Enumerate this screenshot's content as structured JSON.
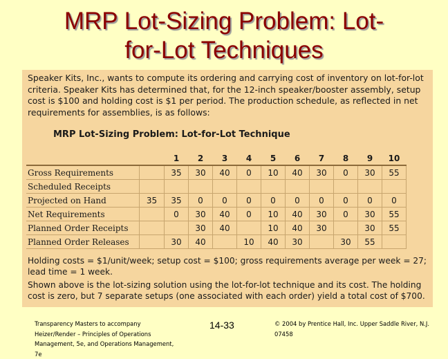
{
  "slide": {
    "title_line1": "MRP Lot-Sizing Problem: Lot-",
    "title_line2": "for-Lot Techniques"
  },
  "panel": {
    "intro": "Speaker Kits, Inc., wants to compute its ordering and carrying cost of inventory on lot-for-lot criteria. Speaker Kits has determined that, for the 12-inch speaker/booster assembly, setup cost is $100 and holding cost is $1 per period. The production schedule, as reflected in net requirements for assemblies, is as follows:",
    "table_title": "MRP Lot-Sizing Problem: Lot-for-Lot Technique",
    "periods": [
      "1",
      "2",
      "3",
      "4",
      "5",
      "6",
      "7",
      "8",
      "9",
      "10"
    ],
    "rows": [
      {
        "label": "Gross Requirements",
        "on_hand": "",
        "values": [
          "35",
          "30",
          "40",
          "0",
          "10",
          "40",
          "30",
          "0",
          "30",
          "55"
        ]
      },
      {
        "label": "Scheduled Receipts",
        "on_hand": "",
        "values": [
          "",
          "",
          "",
          "",
          "",
          "",
          "",
          "",
          "",
          ""
        ]
      },
      {
        "label": "Projected on Hand",
        "on_hand": "35",
        "values": [
          "35",
          "0",
          "0",
          "0",
          "0",
          "0",
          "0",
          "0",
          "0",
          "0"
        ]
      },
      {
        "label": "Net Requirements",
        "on_hand": "",
        "values": [
          "0",
          "30",
          "40",
          "0",
          "10",
          "40",
          "30",
          "0",
          "30",
          "55"
        ]
      },
      {
        "label": "Planned Order Receipts",
        "on_hand": "",
        "values": [
          "",
          "30",
          "40",
          "",
          "10",
          "40",
          "30",
          "",
          "30",
          "55"
        ]
      },
      {
        "label": "Planned Order Releases",
        "on_hand": "",
        "values": [
          "30",
          "40",
          "",
          "10",
          "40",
          "30",
          "",
          "30",
          "55",
          ""
        ]
      }
    ],
    "costs_note": "Holding costs = $1/unit/week; setup cost = $100; gross requirements average per week = 27; lead time = 1 week.",
    "summary": "Shown above is the lot-sizing solution using the lot-for-lot technique and its cost. The holding cost is zero, but 7 separate setups (one associated with each order) yield a total cost of $700."
  },
  "footer": {
    "credit": "Transparency Masters to accompany Heizer/Render – Principles of Operations Management, 5e, and Operations Management, 7e",
    "page": "14-33",
    "copyright": "© 2004 by Prentice Hall, Inc. Upper Saddle River, N.J. 07458"
  }
}
